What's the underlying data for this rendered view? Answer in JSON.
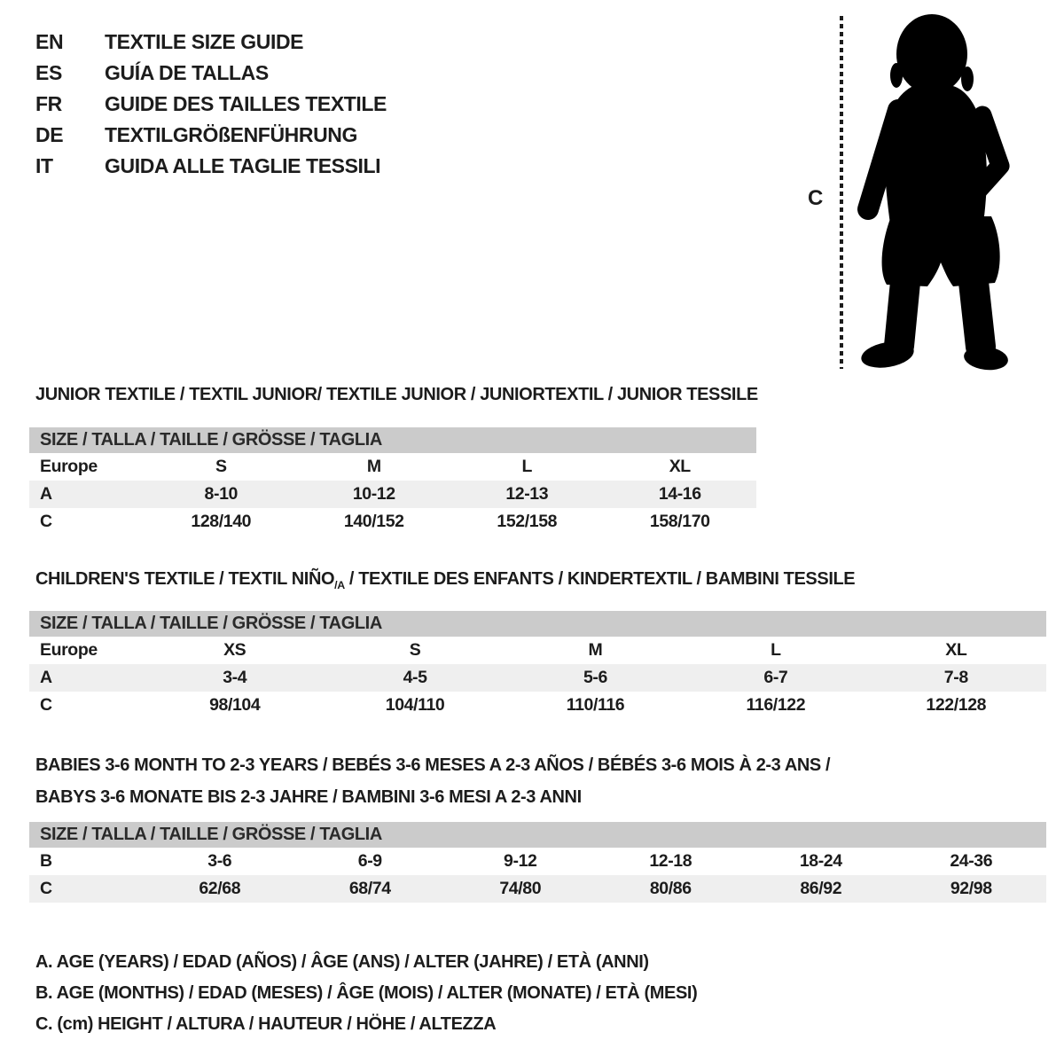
{
  "languages": [
    {
      "code": "EN",
      "label": "TEXTILE SIZE GUIDE"
    },
    {
      "code": "ES",
      "label": "GUÍA DE TALLAS"
    },
    {
      "code": "FR",
      "label": "GUIDE DES TAILLES TEXTILE"
    },
    {
      "code": "DE",
      "label": "TEXTILGRÖßENFÜHRUNG"
    },
    {
      "code": "IT",
      "label": "GUIDA ALLE TAGLIE TESSILI"
    }
  ],
  "figure": {
    "measure_label": "C",
    "description": "toddler-silhouette"
  },
  "sections": {
    "junior": {
      "heading": "JUNIOR TEXTILE / TEXTIL JUNIOR/ TEXTILE JUNIOR / JUNIORTEXTIL / JUNIOR TESSILE",
      "size_header": "SIZE / TALLA / TAILLE / GRÖSSE / TAGLIA",
      "rows": [
        [
          "Europe",
          "S",
          "M",
          "L",
          "XL"
        ],
        [
          "A",
          "8-10",
          "10-12",
          "12-13",
          "14-16"
        ],
        [
          "C",
          "128/140",
          "140/152",
          "152/158",
          "158/170"
        ]
      ]
    },
    "children": {
      "heading_prefix": "CHILDREN'S TEXTILE / TEXTIL NIÑO",
      "heading_sub": "/A",
      "heading_suffix": " / TEXTILE DES ENFANTS / KINDERTEXTIL / BAMBINI TESSILE",
      "size_header": "SIZE / TALLA / TAILLE / GRÖSSE / TAGLIA",
      "rows": [
        [
          "Europe",
          "XS",
          "S",
          "M",
          "L",
          "XL"
        ],
        [
          "A",
          "3-4",
          "4-5",
          "5-6",
          "6-7",
          "7-8"
        ],
        [
          "C",
          "98/104",
          "104/110",
          "110/116",
          "116/122",
          "122/128"
        ]
      ]
    },
    "babies": {
      "heading_line1": "BABIES 3-6 MONTH TO 2-3 YEARS / BEBÉS 3-6 MESES A 2-3 AÑOS / BÉBÉS 3-6 MOIS À 2-3 ANS /",
      "heading_line2": "BABYS 3-6 MONATE BIS 2-3 JAHRE / BAMBINI 3-6 MESI A 2-3 ANNI",
      "size_header": "SIZE / TALLA / TAILLE / GRÖSSE / TAGLIA",
      "rows": [
        [
          "B",
          "3-6",
          "6-9",
          "9-12",
          "12-18",
          "18-24",
          "24-36"
        ],
        [
          "C",
          "62/68",
          "68/74",
          "74/80",
          "80/86",
          "86/92",
          "92/98"
        ]
      ]
    }
  },
  "footnotes": [
    "A. AGE (YEARS) / EDAD (AÑOS) / ÂGE (ANS) / ALTER (JAHRE) / ETÀ (ANNI)",
    "B. AGE (MONTHS) / EDAD (MESES) / ÂGE (MOIS) / ALTER (MONATE) / ETÀ (MESI)",
    "C. (cm) HEIGHT / ALTURA / HAUTEUR / HÖHE / ALTEZZA"
  ],
  "colors": {
    "header_bar": "#cbcbcb",
    "row_stripe": "#efefef",
    "text": "#1c1c1c",
    "silhouette": "#000000"
  }
}
